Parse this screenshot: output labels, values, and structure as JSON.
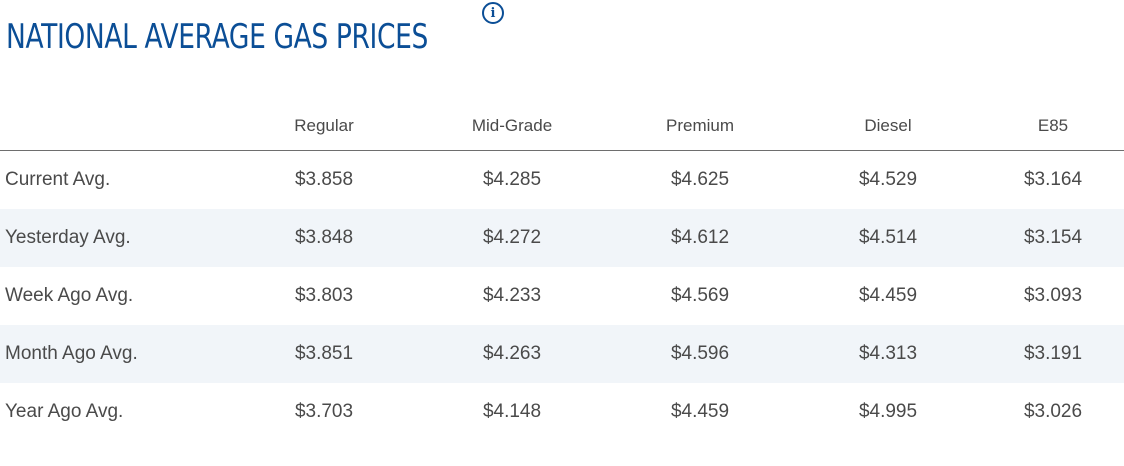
{
  "header": {
    "title": "NATIONAL AVERAGE GAS PRICES",
    "info_icon": "info-circle-icon"
  },
  "table": {
    "columns": [
      "",
      "Regular",
      "Mid-Grade",
      "Premium",
      "Diesel",
      "E85"
    ],
    "rows": [
      {
        "label": "Current Avg.",
        "values": [
          "$3.858",
          "$4.285",
          "$4.625",
          "$4.529",
          "$3.164"
        ]
      },
      {
        "label": "Yesterday Avg.",
        "values": [
          "$3.848",
          "$4.272",
          "$4.612",
          "$4.514",
          "$3.154"
        ]
      },
      {
        "label": "Week Ago Avg.",
        "values": [
          "$3.803",
          "$4.233",
          "$4.569",
          "$4.459",
          "$3.093"
        ]
      },
      {
        "label": "Month Ago Avg.",
        "values": [
          "$3.851",
          "$4.263",
          "$4.596",
          "$4.313",
          "$3.191"
        ]
      },
      {
        "label": "Year Ago Avg.",
        "values": [
          "$3.703",
          "$4.148",
          "$4.459",
          "$4.995",
          "$3.026"
        ]
      }
    ]
  },
  "colors": {
    "title": "#0b4e96",
    "text": "#4a4a4a",
    "row_shade": "#f1f5f9",
    "header_rule": "#6e6e6e"
  }
}
